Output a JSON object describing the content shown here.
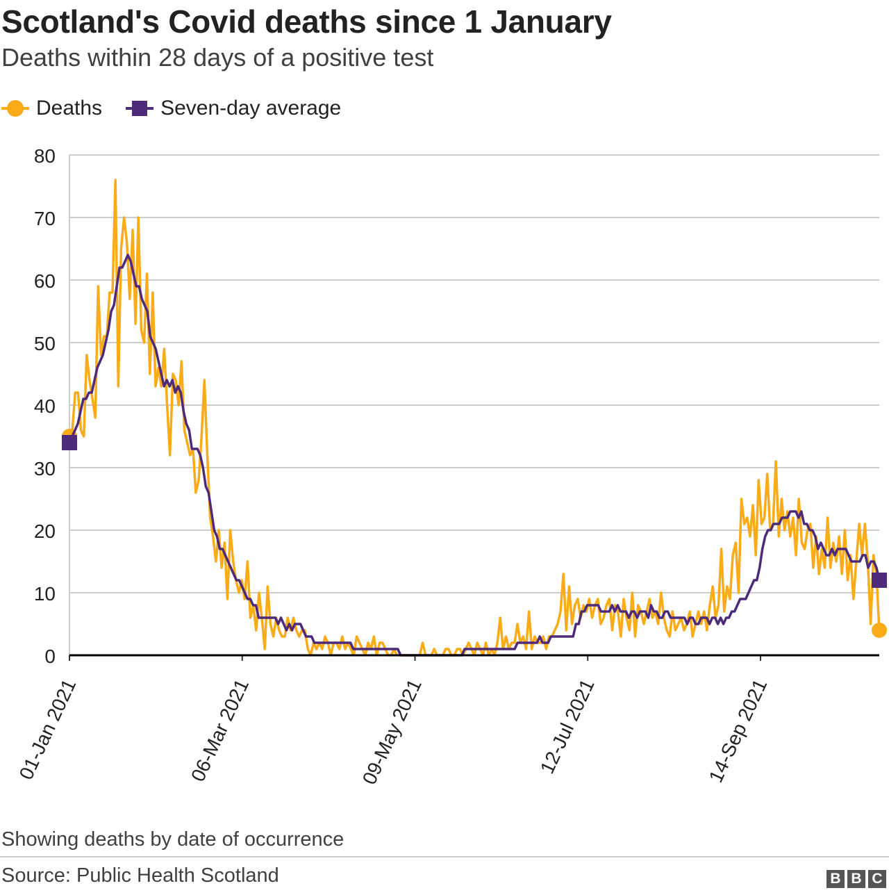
{
  "header": {
    "title": "Scotland's Covid deaths since 1 January",
    "subtitle": "Deaths within 28 days of a positive test"
  },
  "legend": {
    "deaths_label": "Deaths",
    "average_label": "Seven-day average"
  },
  "footer": {
    "note": "Showing deaths by date of occurrence",
    "source": "Source: Public Health Scotland",
    "logo_letters": [
      "B",
      "B",
      "C"
    ]
  },
  "colors": {
    "deaths": "#FAAB18",
    "average": "#4D2B7A",
    "grid": "#cccccc",
    "baseline": "#000000"
  },
  "chart_data": {
    "type": "line",
    "title": "Scotland's Covid deaths since 1 January",
    "subtitle": "Deaths within 28 days of a positive test",
    "x_start": "01-Jan 2021",
    "x_end": "28-Oct 2021",
    "x_ticks": [
      "01-Jan 2021",
      "06-Mar 2021",
      "09-May 2021",
      "12-Jul 2021",
      "14-Sep 2021"
    ],
    "y_ticks": [
      0,
      10,
      20,
      30,
      40,
      50,
      60,
      70,
      80
    ],
    "ylim": [
      0,
      80
    ],
    "grid": "horizontal",
    "legend_position": "top-left",
    "series": [
      {
        "name": "Deaths",
        "color": "#FAAB18",
        "marker": "circle at end points",
        "values": [
          35,
          36,
          42,
          42,
          36,
          35,
          48,
          44,
          41,
          38,
          59,
          48,
          51,
          51,
          58,
          58,
          76,
          43,
          65,
          70,
          66,
          57,
          68,
          53,
          70,
          52,
          50,
          61,
          45,
          58,
          43,
          46,
          43,
          49,
          40,
          32,
          45,
          44,
          40,
          47,
          36,
          34,
          32,
          33,
          26,
          28,
          35,
          44,
          32,
          22,
          19,
          15,
          20,
          14,
          18,
          9,
          20,
          15,
          12,
          10,
          12,
          9,
          15,
          6,
          8,
          4,
          10,
          6,
          1,
          11,
          5,
          3,
          6,
          4,
          3,
          3,
          6,
          4,
          6,
          4,
          3,
          4,
          4,
          1,
          0,
          2,
          1,
          2,
          1,
          3,
          2,
          0,
          2,
          2,
          1,
          3,
          1,
          2,
          1,
          0,
          3,
          2,
          1,
          0,
          2,
          1,
          3,
          0,
          2,
          2,
          1,
          0,
          0,
          1,
          0,
          0,
          0,
          0,
          0,
          0,
          0,
          0,
          0,
          2,
          0,
          0,
          0,
          1,
          0,
          0,
          0,
          1,
          1,
          0,
          0,
          1,
          1,
          0,
          1,
          2,
          1,
          0,
          2,
          1,
          0,
          2,
          0,
          1,
          0,
          2,
          6,
          1,
          3,
          1,
          2,
          2,
          5,
          2,
          3,
          1,
          7,
          1,
          3,
          2,
          2,
          3,
          1,
          3,
          3,
          4,
          5,
          7,
          13,
          4,
          11,
          5,
          8,
          9,
          6,
          8,
          7,
          9,
          6,
          8,
          9,
          5,
          6,
          8,
          9,
          4,
          8,
          7,
          3,
          9,
          6,
          4,
          10,
          3,
          8,
          7,
          5,
          7,
          9,
          6,
          7,
          5,
          10,
          6,
          4,
          3,
          7,
          4,
          5,
          6,
          4,
          5,
          7,
          3,
          5,
          7,
          5,
          7,
          4,
          8,
          11,
          6,
          8,
          17,
          7,
          11,
          9,
          16,
          18,
          10,
          25,
          21,
          22,
          19,
          24,
          16,
          28,
          21,
          22,
          29,
          20,
          21,
          31,
          19,
          25,
          20,
          23,
          19,
          22,
          16,
          25,
          18,
          17,
          20,
          21,
          14,
          19,
          13,
          17,
          14,
          22,
          14,
          18,
          15,
          19,
          13,
          20,
          12,
          16,
          9,
          15,
          21,
          16,
          21,
          15,
          5,
          16,
          13,
          4
        ]
      },
      {
        "name": "Seven-day average",
        "color": "#4D2B7A",
        "marker": "square at end points",
        "values": [
          34,
          35,
          36,
          37,
          39,
          41,
          41,
          42,
          42,
          44,
          46,
          47,
          48,
          50,
          52,
          55,
          56,
          59,
          62,
          62,
          63,
          64,
          63,
          61,
          59,
          59,
          57,
          56,
          55,
          51,
          50,
          49,
          47,
          45,
          43,
          44,
          43,
          44,
          42,
          43,
          42,
          39,
          37,
          36,
          33,
          33,
          33,
          32,
          30,
          27,
          26,
          23,
          20,
          19,
          17,
          17,
          16,
          15,
          14,
          13,
          12,
          12,
          11,
          10,
          9,
          9,
          8,
          8,
          6,
          6,
          6,
          6,
          6,
          6,
          6,
          5,
          6,
          5,
          4,
          5,
          4,
          5,
          5,
          5,
          4,
          3,
          3,
          3,
          2,
          2,
          2,
          2,
          2,
          2,
          2,
          2,
          2,
          2,
          2,
          2,
          2,
          2,
          1,
          1,
          1,
          1,
          1,
          1,
          1,
          1,
          1,
          1,
          1,
          1,
          1,
          1,
          1,
          1,
          1,
          0,
          0,
          0,
          0,
          0,
          0,
          0,
          0,
          0,
          0,
          0,
          0,
          0,
          0,
          0,
          0,
          0,
          0,
          0,
          0,
          0,
          0,
          0,
          1,
          1,
          1,
          1,
          1,
          1,
          1,
          1,
          1,
          1,
          1,
          1,
          1,
          1,
          1,
          1,
          1,
          1,
          1,
          2,
          2,
          2,
          2,
          2,
          2,
          2,
          2,
          3,
          2,
          2,
          2,
          3,
          3,
          3,
          3,
          3,
          3,
          3,
          3,
          3,
          5,
          5,
          7,
          7,
          8,
          8,
          8,
          8,
          8,
          7,
          7,
          7,
          7,
          8,
          7,
          8,
          7,
          7,
          7,
          6,
          7,
          7,
          6,
          7,
          7,
          7,
          6,
          8,
          7,
          7,
          6,
          6,
          7,
          7,
          6,
          6,
          6,
          6,
          6,
          6,
          5,
          6,
          6,
          5,
          5,
          6,
          6,
          6,
          5,
          6,
          6,
          5,
          6,
          5,
          6,
          6,
          7,
          7,
          8,
          9,
          9,
          9,
          10,
          11,
          12,
          12,
          14,
          17,
          19,
          20,
          20,
          21,
          21,
          21,
          22,
          22,
          22,
          23,
          23,
          23,
          22,
          23,
          21,
          21,
          20,
          20,
          19,
          17,
          18,
          17,
          16,
          16,
          17,
          16,
          17,
          17,
          17,
          17,
          16,
          15,
          15,
          15,
          15,
          16,
          16,
          14,
          15,
          15,
          14,
          12
        ]
      }
    ]
  }
}
